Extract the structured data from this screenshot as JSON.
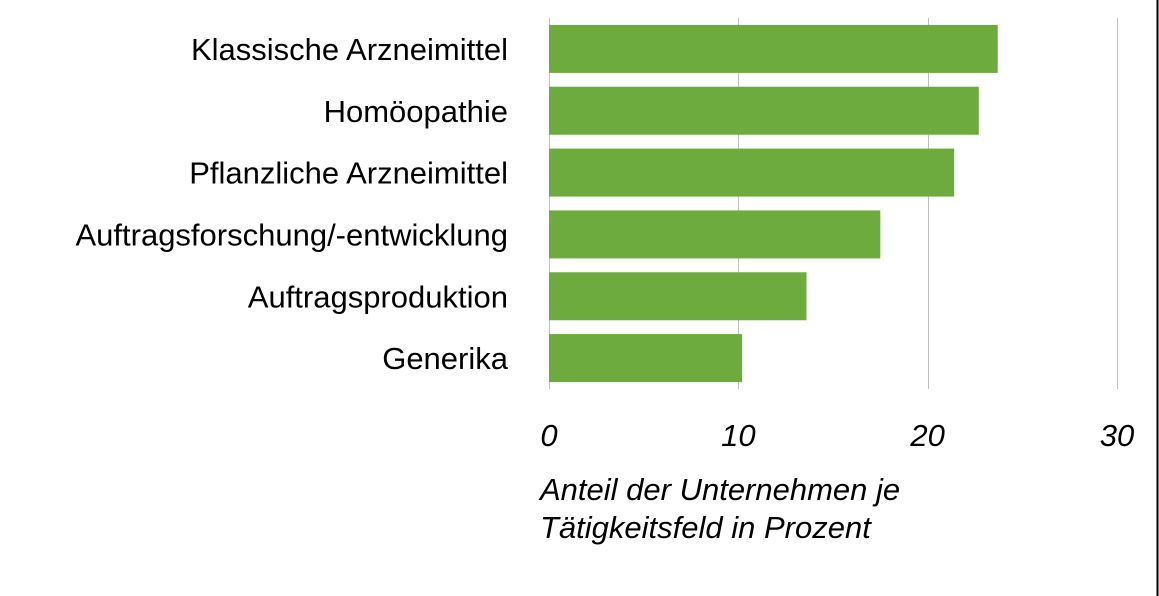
{
  "chart_data": {
    "type": "bar",
    "orientation": "horizontal",
    "categories": [
      "Klassische Arzneimittel",
      "Homöopathie",
      "Pflanzliche Arzneimittel",
      "Auftragsforschung/-entwicklung",
      "Auftragsproduktion",
      "Generika"
    ],
    "values": [
      23.7,
      22.7,
      21.4,
      17.5,
      13.6,
      10.2
    ],
    "x_ticks": [
      "0",
      "10",
      "20",
      "30"
    ],
    "xlim": [
      0,
      30
    ],
    "xlabel_lines": [
      "Anteil der Unternehmen je",
      "Tätigkeitsfeld in Prozent"
    ],
    "grid": "vertical",
    "bar_color": "#6EAB3F",
    "grid_color": "#BFBFBF"
  }
}
